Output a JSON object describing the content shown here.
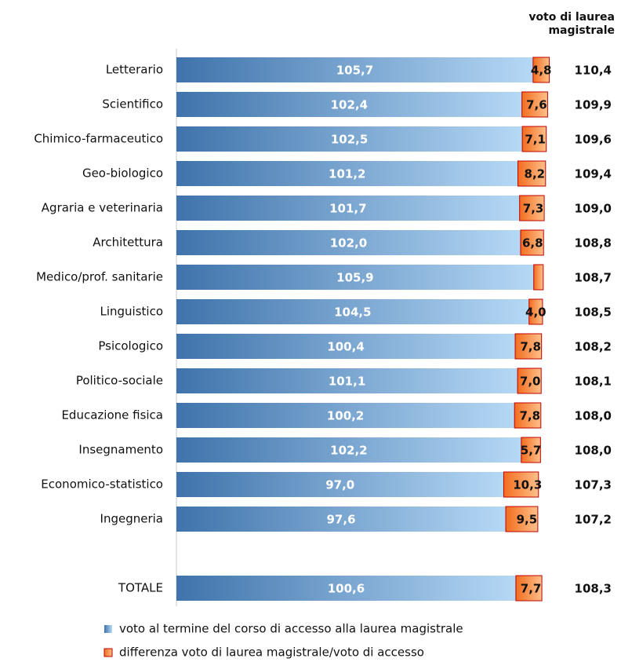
{
  "chart_data": {
    "type": "stacked-barh",
    "header": "voto di laurea magistrale",
    "categories": [
      "Letterario",
      "Scientifico",
      "Chimico-farmaceutico",
      "Geo-biologico",
      "Agraria e veterinaria",
      "Architettura",
      "Medico/prof. sanitarie",
      "Linguistico",
      "Psicologico",
      "Politico-sociale",
      "Educazione fisica",
      "Insegnamento",
      "Economico-statistico",
      "Ingegneria",
      null,
      "TOTALE"
    ],
    "series": [
      {
        "name": "voto al termine del corso di accesso alla laurea magistrale",
        "color": "#3f73ab",
        "values": [
          105.7,
          102.4,
          102.5,
          101.2,
          101.7,
          102.0,
          105.9,
          104.5,
          100.4,
          101.1,
          100.2,
          102.2,
          97.0,
          97.6,
          null,
          100.6
        ],
        "value_labels": [
          "105,7",
          "102,4",
          "102,5",
          "101,2",
          "101,7",
          "102,0",
          "105,9",
          "104,5",
          "100,4",
          "101,1",
          "100,2",
          "102,2",
          "97,0",
          "97,6",
          null,
          "100,6"
        ]
      },
      {
        "name": "differenza voto di laurea magistrale/voto di accesso",
        "color": "#f26d1f",
        "values": [
          4.8,
          7.6,
          7.1,
          8.2,
          7.3,
          6.8,
          2.8,
          4.0,
          7.8,
          7.0,
          7.8,
          5.7,
          10.3,
          9.5,
          null,
          7.7
        ],
        "value_labels": [
          "4,8",
          "7,6",
          "7,1",
          "8,2",
          "7,3",
          "6,8",
          null,
          "4,0",
          "7,8",
          "7,0",
          "7,8",
          "5,7",
          "10,3",
          "9,5",
          null,
          "7,7"
        ]
      }
    ],
    "totals": [
      110.4,
      109.9,
      109.6,
      109.4,
      109.0,
      108.8,
      108.7,
      108.5,
      108.2,
      108.1,
      108.0,
      108.0,
      107.3,
      107.2,
      null,
      108.3
    ],
    "total_labels": [
      "110,4",
      "109,9",
      "109,6",
      "109,4",
      "109,0",
      "108,8",
      "108,7",
      "108,5",
      "108,2",
      "108,1",
      "108,0",
      "108,0",
      "107,3",
      "107,2",
      null,
      "108,3"
    ],
    "xlim": [
      0,
      112
    ]
  }
}
